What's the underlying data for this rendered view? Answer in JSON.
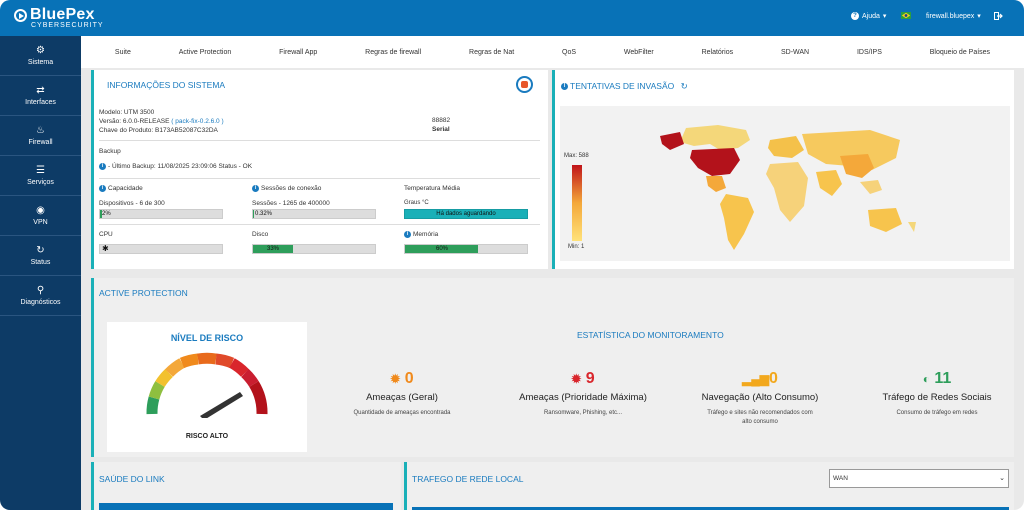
{
  "header": {
    "brand": "BluePex",
    "subtitle": "CYBERSECURITY",
    "help_label": "Ajuda",
    "user_label": "firewall.bluepex",
    "colors": {
      "primary": "#0872b7",
      "sidebar": "#0d3b66",
      "accent": "#1ab0b8"
    }
  },
  "sidebar": {
    "items": [
      {
        "label": "Sistema",
        "icon": "gears-icon"
      },
      {
        "label": "Interfaces",
        "icon": "arrows-icon"
      },
      {
        "label": "Firewall",
        "icon": "flame-icon"
      },
      {
        "label": "Serviços",
        "icon": "server-icon"
      },
      {
        "label": "VPN",
        "icon": "globe-icon"
      },
      {
        "label": "Status",
        "icon": "refresh-icon"
      },
      {
        "label": "Diagnósticos",
        "icon": "search-icon"
      }
    ]
  },
  "tabs": [
    "Suite",
    "Active Protection",
    "Firewall App",
    "Regras de firewall",
    "Regras de Nat",
    "QoS",
    "WebFilter",
    "Relatórios",
    "SD-WAN",
    "IDS/IPS",
    "Bloqueio de Países"
  ],
  "system_info": {
    "title": "INFORMAÇÕES DO SISTEMA",
    "model": "Modelo: UTM 3500",
    "version_prefix": "Versão: 6.0.0-RELEASE ",
    "version_link": "( pack-fix-0.2.6.0 )",
    "product_key": "Chave do Produto: B173AB52087C32DA",
    "serial_value": "88882",
    "serial_label": "Serial",
    "backup_label": "Backup",
    "backup_text": "- Último Backup: 11/08/2025 23:09:06 Status - OK",
    "capacity_label": "Capacidade",
    "sessions_label": "Sessões de conexão",
    "temp_label": "Temperatura Média",
    "devices_text": "Dispositivos - 6 de 300",
    "devices_value": "2%",
    "devices_pct": 2,
    "sessions_text": "Sessões - 1265 de 400000",
    "sessions_value": "0.32%",
    "sessions_pct": 0.32,
    "temp_unit": "Graus °C",
    "temp_value": "Há dados aguardando",
    "cpu_label": "CPU",
    "disk_label": "Disco",
    "disk_value": "33%",
    "disk_pct": 33,
    "memory_label": "Memória",
    "memory_value": "60%",
    "memory_pct": 60
  },
  "invasion": {
    "title": "TENTATIVAS DE INVASÃO",
    "max_label": "Max: 588",
    "min_label": "Min: 1"
  },
  "active_protection": {
    "title": "ACTIVE PROTECTION",
    "risk_title": "NÍVEL DE RISCO",
    "risk_label": "RISCO ALTO",
    "monitoring_title": "ESTATÍSTICA DO MONITORAMENTO",
    "stats": [
      {
        "value": "0",
        "label": "Ameaças (Geral)",
        "desc": "Quantidade de ameaças encontrada",
        "icon": "bug-icon",
        "color": "#f08a1c"
      },
      {
        "value": "9",
        "label": "Ameaças (Prioridade Máxima)",
        "desc": "Ransomware, Phishing, etc...",
        "icon": "bug-icon",
        "color": "#d9262c"
      },
      {
        "value": "0",
        "label": "Navegação (Alto Consumo)",
        "desc": "Tráfego e sites não recomendados com alto consumo",
        "icon": "signal-icon",
        "color": "#f2a81d"
      },
      {
        "value": "11",
        "label": "Tráfego de Redes Sociais",
        "desc": "Consumo de tráfego em redes",
        "icon": "social-icon",
        "color": "#2e9e5b"
      }
    ]
  },
  "link_health": {
    "title": "SAÚDE DO LINK"
  },
  "local_traffic": {
    "title": "TRAFEGO DE REDE LOCAL",
    "select_value": "WAN"
  }
}
